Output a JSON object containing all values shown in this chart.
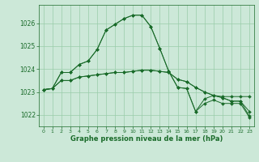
{
  "background_color": "#cce8d8",
  "grid_color": "#99ccaa",
  "line_color": "#1a6b2a",
  "xlim": [
    -0.5,
    23.5
  ],
  "ylim": [
    1021.5,
    1026.8
  ],
  "yticks": [
    1022,
    1023,
    1024,
    1025,
    1026
  ],
  "xticks": [
    0,
    1,
    2,
    3,
    4,
    5,
    6,
    7,
    8,
    9,
    10,
    11,
    12,
    13,
    14,
    15,
    16,
    17,
    18,
    19,
    20,
    21,
    22,
    23
  ],
  "xlabel": "Graphe pression niveau de la mer (hPa)",
  "series": [
    [
      1023.1,
      1023.15,
      1023.85,
      1023.85,
      1024.2,
      1024.35,
      1024.85,
      1025.7,
      1025.95,
      1026.2,
      1026.35,
      1026.35,
      1025.85,
      1024.9,
      1023.9,
      1023.2,
      1023.15,
      1022.15,
      1022.7,
      1022.85,
      1022.8,
      1022.8,
      1022.8,
      1022.8
    ],
    [
      1023.1,
      1023.15,
      1023.85,
      1023.85,
      1024.2,
      1024.35,
      1024.85,
      1025.7,
      1025.95,
      1026.2,
      1026.35,
      1026.35,
      1025.85,
      1024.9,
      1023.9,
      1023.2,
      1023.15,
      1022.15,
      1022.5,
      1022.65,
      1022.5,
      1022.5,
      1022.5,
      1021.9
    ],
    [
      1023.1,
      1023.15,
      1023.5,
      1023.5,
      1023.65,
      1023.7,
      1023.75,
      1023.8,
      1023.85,
      1023.85,
      1023.9,
      1023.95,
      1023.95,
      1023.9,
      1023.85,
      1023.55,
      1023.45,
      1023.2,
      1023.0,
      1022.85,
      1022.75,
      1022.6,
      1022.6,
      1022.15
    ],
    [
      1023.1,
      1023.15,
      1023.5,
      1023.5,
      1023.65,
      1023.7,
      1023.75,
      1023.8,
      1023.85,
      1023.85,
      1023.9,
      1023.95,
      1023.95,
      1023.9,
      1023.85,
      1023.55,
      1023.45,
      1023.2,
      1023.0,
      1022.85,
      1022.75,
      1022.6,
      1022.6,
      1021.95
    ]
  ]
}
